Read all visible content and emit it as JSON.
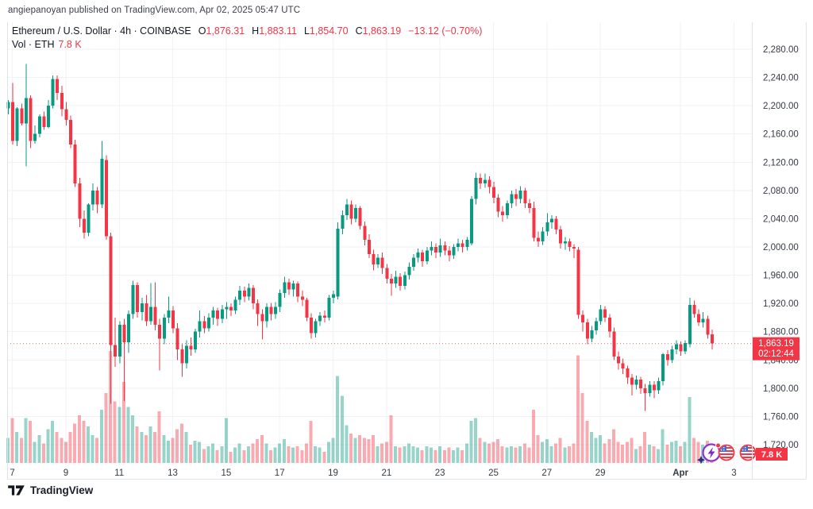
{
  "attribution": "angiepanoyan published on TradingView.com, Apr 02, 2025 05:47 UTC",
  "legend": {
    "title": "Ethereum / U.S. Dollar · 4h · COINBASE",
    "ohlc": [
      {
        "label": "O",
        "value": "1,876.31"
      },
      {
        "label": "H",
        "value": "1,883.11"
      },
      {
        "label": "L",
        "value": "1,854.70"
      },
      {
        "label": "C",
        "value": "1,863.19"
      }
    ],
    "change": "−13.12 (−0.70%)",
    "vol_label": "Vol · ETH",
    "vol_value": "7.8 K"
  },
  "footer": {
    "brand": "TradingView"
  },
  "colors": {
    "up": "#089981",
    "down": "#F23645",
    "grid": "#F0F2F6",
    "axis_text": "#363A45",
    "frame": "#E0E3EB",
    "badge": "#F23645",
    "header_text": "#131722"
  },
  "last_price": {
    "value": 1863.19,
    "label": "1,863.19",
    "countdown": "02:12:44"
  },
  "volume_badge": "7.8 K",
  "chart_data": {
    "type": "candlestick",
    "title": "Ethereum / U.S. Dollar",
    "symbol": "ETHUSD",
    "exchange": "COINBASE",
    "interval": "4h",
    "open": 1876.31,
    "high": 1883.11,
    "low": 1854.7,
    "close": 1863.19,
    "change": -13.12,
    "change_pct": -0.7,
    "current_volume_k": 7.8,
    "volume_unit": "K",
    "ylim": [
      1700,
      2300
    ],
    "grid": true,
    "y_axis": {
      "ticks": [
        {
          "value": 2280,
          "label": "2,280.00"
        },
        {
          "value": 2240,
          "label": "2,240.00"
        },
        {
          "value": 2200,
          "label": "2,200.00"
        },
        {
          "value": 2160,
          "label": "2,160.00"
        },
        {
          "value": 2120,
          "label": "2,120.00"
        },
        {
          "value": 2080,
          "label": "2,080.00"
        },
        {
          "value": 2040,
          "label": "2,040.00"
        },
        {
          "value": 2000,
          "label": "2,000.00"
        },
        {
          "value": 1960,
          "label": "1,960.00"
        },
        {
          "value": 1920,
          "label": "1,920.00"
        },
        {
          "value": 1880,
          "label": "1,880.00"
        },
        {
          "value": 1840,
          "label": "1,840.00"
        },
        {
          "value": 1800,
          "label": "1,800.00"
        },
        {
          "value": 1760,
          "label": "1,760.00"
        },
        {
          "value": 1720,
          "label": "1,720.00"
        }
      ]
    },
    "x_axis": {
      "ticks": [
        {
          "label": "7",
          "index": 1,
          "bold": false
        },
        {
          "label": "9",
          "index": 13,
          "bold": false
        },
        {
          "label": "11",
          "index": 25,
          "bold": false
        },
        {
          "label": "13",
          "index": 37,
          "bold": false
        },
        {
          "label": "15",
          "index": 49,
          "bold": false
        },
        {
          "label": "17",
          "index": 61,
          "bold": false
        },
        {
          "label": "19",
          "index": 73,
          "bold": false
        },
        {
          "label": "21",
          "index": 85,
          "bold": false
        },
        {
          "label": "23",
          "index": 97,
          "bold": false
        },
        {
          "label": "25",
          "index": 109,
          "bold": false
        },
        {
          "label": "27",
          "index": 121,
          "bold": false
        },
        {
          "label": "29",
          "index": 133,
          "bold": false
        },
        {
          "label": "Apr",
          "index": 151,
          "bold": true
        },
        {
          "label": "3",
          "index": 163,
          "bold": false
        }
      ]
    },
    "candles": [
      [
        2196,
        2208,
        2188,
        2205,
        18
      ],
      [
        2205,
        2232,
        2145,
        2150,
        32
      ],
      [
        2150,
        2198,
        2143,
        2196,
        22
      ],
      [
        2196,
        2203,
        2172,
        2175,
        18
      ],
      [
        2175,
        2259,
        2114,
        2211,
        32
      ],
      [
        2211,
        2215,
        2140,
        2150,
        30
      ],
      [
        2150,
        2172,
        2146,
        2160,
        15
      ],
      [
        2160,
        2188,
        2155,
        2185,
        20
      ],
      [
        2185,
        2192,
        2166,
        2170,
        14
      ],
      [
        2170,
        2208,
        2168,
        2200,
        24
      ],
      [
        2200,
        2243,
        2196,
        2238,
        30
      ],
      [
        2238,
        2243,
        2208,
        2218,
        22
      ],
      [
        2218,
        2228,
        2185,
        2195,
        18
      ],
      [
        2195,
        2205,
        2172,
        2180,
        15
      ],
      [
        2180,
        2186,
        2140,
        2145,
        22
      ],
      [
        2145,
        2152,
        2085,
        2090,
        28
      ],
      [
        2090,
        2098,
        2028,
        2040,
        34
      ],
      [
        2040,
        2052,
        2012,
        2020,
        30
      ],
      [
        2020,
        2062,
        2015,
        2060,
        26
      ],
      [
        2060,
        2090,
        2052,
        2080,
        20
      ],
      [
        2080,
        2085,
        2048,
        2060,
        18
      ],
      [
        2060,
        2150,
        2055,
        2125,
        38
      ],
      [
        2123,
        2130,
        2010,
        2015,
        50
      ],
      [
        2015,
        2020,
        1778,
        1861,
        80
      ],
      [
        1861,
        1900,
        1830,
        1845,
        44
      ],
      [
        1845,
        1895,
        1835,
        1890,
        40
      ],
      [
        1890,
        1898,
        1782,
        1865,
        58
      ],
      [
        1865,
        1910,
        1850,
        1905,
        40
      ],
      [
        1905,
        1952,
        1898,
        1946,
        34
      ],
      [
        1946,
        1950,
        1900,
        1908,
        26
      ],
      [
        1908,
        1928,
        1896,
        1920,
        22
      ],
      [
        1920,
        1932,
        1888,
        1895,
        20
      ],
      [
        1895,
        1949,
        1890,
        1915,
        26
      ],
      [
        1915,
        1950,
        1882,
        1890,
        22
      ],
      [
        1890,
        1898,
        1825,
        1870,
        37
      ],
      [
        1870,
        1905,
        1862,
        1900,
        20
      ],
      [
        1900,
        1930,
        1892,
        1910,
        16
      ],
      [
        1910,
        1916,
        1878,
        1885,
        18
      ],
      [
        1885,
        1892,
        1840,
        1855,
        24
      ],
      [
        1855,
        1862,
        1816,
        1835,
        28
      ],
      [
        1835,
        1868,
        1828,
        1860,
        22
      ],
      [
        1860,
        1872,
        1846,
        1855,
        13
      ],
      [
        1855,
        1884,
        1850,
        1880,
        16
      ],
      [
        1880,
        1910,
        1872,
        1895,
        15
      ],
      [
        1895,
        1902,
        1878,
        1885,
        10
      ],
      [
        1885,
        1906,
        1880,
        1900,
        12
      ],
      [
        1900,
        1915,
        1890,
        1910,
        14
      ],
      [
        1910,
        1914,
        1888,
        1898,
        9
      ],
      [
        1898,
        1918,
        1892,
        1912,
        12
      ],
      [
        1912,
        1922,
        1898,
        1915,
        32
      ],
      [
        1915,
        1920,
        1902,
        1910,
        8
      ],
      [
        1910,
        1930,
        1905,
        1925,
        11
      ],
      [
        1925,
        1945,
        1918,
        1938,
        14
      ],
      [
        1938,
        1944,
        1922,
        1930,
        9
      ],
      [
        1930,
        1948,
        1924,
        1942,
        12
      ],
      [
        1942,
        1946,
        1912,
        1920,
        14
      ],
      [
        1920,
        1926,
        1888,
        1905,
        17
      ],
      [
        1905,
        1912,
        1869,
        1895,
        20
      ],
      [
        1895,
        1920,
        1886,
        1915,
        14
      ],
      [
        1915,
        1921,
        1896,
        1905,
        9
      ],
      [
        1905,
        1922,
        1898,
        1915,
        11
      ],
      [
        1915,
        1940,
        1908,
        1935,
        14
      ],
      [
        1935,
        1958,
        1928,
        1950,
        17
      ],
      [
        1950,
        1955,
        1932,
        1940,
        12
      ],
      [
        1940,
        1952,
        1930,
        1948,
        11
      ],
      [
        1948,
        1951,
        1922,
        1930,
        12
      ],
      [
        1930,
        1938,
        1916,
        1925,
        9
      ],
      [
        1925,
        1928,
        1895,
        1900,
        14
      ],
      [
        1900,
        1906,
        1870,
        1878,
        30
      ],
      [
        1878,
        1898,
        1872,
        1895,
        12
      ],
      [
        1895,
        1908,
        1888,
        1903,
        11
      ],
      [
        1903,
        1910,
        1893,
        1900,
        8
      ],
      [
        1900,
        1932,
        1896,
        1928,
        15
      ],
      [
        1928,
        1938,
        1920,
        1933,
        18
      ],
      [
        1930,
        2035,
        1926,
        2026,
        62
      ],
      [
        2026,
        2052,
        2018,
        2045,
        48
      ],
      [
        2045,
        2068,
        2038,
        2060,
        27
      ],
      [
        2060,
        2066,
        2032,
        2040,
        21
      ],
      [
        2040,
        2060,
        2035,
        2055,
        18
      ],
      [
        2055,
        2058,
        2025,
        2030,
        20
      ],
      [
        2030,
        2036,
        2002,
        2010,
        18
      ],
      [
        2010,
        2018,
        1984,
        1990,
        17
      ],
      [
        1990,
        1996,
        1967,
        1975,
        20
      ],
      [
        1975,
        1990,
        1970,
        1985,
        12
      ],
      [
        1985,
        1992,
        1962,
        1970,
        14
      ],
      [
        1970,
        1976,
        1948,
        1955,
        15
      ],
      [
        1955,
        1962,
        1931,
        1948,
        34
      ],
      [
        1948,
        1966,
        1942,
        1958,
        12
      ],
      [
        1958,
        1963,
        1938,
        1945,
        11
      ],
      [
        1945,
        1965,
        1940,
        1960,
        12
      ],
      [
        1960,
        1978,
        1954,
        1972,
        14
      ],
      [
        1972,
        1990,
        1966,
        1985,
        12
      ],
      [
        1985,
        1998,
        1978,
        1992,
        11
      ],
      [
        1992,
        1996,
        1972,
        1980,
        9
      ],
      [
        1980,
        2000,
        1975,
        1995,
        12
      ],
      [
        1995,
        2008,
        1988,
        2000,
        11
      ],
      [
        2000,
        2005,
        1984,
        1992,
        9
      ],
      [
        1992,
        2012,
        1986,
        2002,
        12
      ],
      [
        2002,
        2008,
        1988,
        1995,
        9
      ],
      [
        1995,
        2001,
        1980,
        1988,
        11
      ],
      [
        1988,
        2004,
        1983,
        2000,
        9
      ],
      [
        2000,
        2012,
        1994,
        2005,
        11
      ],
      [
        2005,
        2010,
        1992,
        2000,
        9
      ],
      [
        2000,
        2014,
        1995,
        2010,
        14
      ],
      [
        2005,
        2072,
        2002,
        2068,
        30
      ],
      [
        2068,
        2105,
        2060,
        2098,
        32
      ],
      [
        2098,
        2104,
        2082,
        2090,
        18
      ],
      [
        2090,
        2104,
        2084,
        2095,
        15
      ],
      [
        2095,
        2100,
        2076,
        2085,
        14
      ],
      [
        2085,
        2092,
        2062,
        2070,
        15
      ],
      [
        2070,
        2075,
        2042,
        2050,
        17
      ],
      [
        2050,
        2058,
        2036,
        2045,
        12
      ],
      [
        2045,
        2066,
        2040,
        2062,
        11
      ],
      [
        2062,
        2080,
        2055,
        2075,
        12
      ],
      [
        2075,
        2082,
        2058,
        2068,
        11
      ],
      [
        2068,
        2086,
        2062,
        2080,
        12
      ],
      [
        2080,
        2084,
        2055,
        2062,
        14
      ],
      [
        2062,
        2068,
        2048,
        2055,
        11
      ],
      [
        2055,
        2064,
        2008,
        2013,
        38
      ],
      [
        2013,
        2022,
        2000,
        2008,
        20
      ],
      [
        2008,
        2028,
        2003,
        2022,
        15
      ],
      [
        2022,
        2048,
        2016,
        2035,
        17
      ],
      [
        2035,
        2045,
        2026,
        2040,
        12
      ],
      [
        2040,
        2044,
        2018,
        2025,
        14
      ],
      [
        2025,
        2030,
        1998,
        2005,
        18
      ],
      [
        2005,
        2014,
        1996,
        2008,
        11
      ],
      [
        2008,
        2012,
        1994,
        2000,
        12
      ],
      [
        2000,
        2004,
        1984,
        1998,
        14
      ],
      [
        1996,
        2000,
        1898,
        1904,
        77
      ],
      [
        1904,
        1910,
        1880,
        1893,
        50
      ],
      [
        1893,
        1898,
        1862,
        1870,
        30
      ],
      [
        1870,
        1888,
        1865,
        1882,
        22
      ],
      [
        1882,
        1900,
        1876,
        1895,
        18
      ],
      [
        1895,
        1918,
        1890,
        1912,
        20
      ],
      [
        1912,
        1916,
        1894,
        1900,
        14
      ],
      [
        1900,
        1905,
        1872,
        1880,
        17
      ],
      [
        1880,
        1886,
        1840,
        1845,
        24
      ],
      [
        1845,
        1852,
        1826,
        1835,
        15
      ],
      [
        1835,
        1842,
        1820,
        1828,
        13
      ],
      [
        1828,
        1832,
        1806,
        1815,
        15
      ],
      [
        1815,
        1820,
        1790,
        1805,
        18
      ],
      [
        1805,
        1818,
        1798,
        1812,
        10
      ],
      [
        1812,
        1816,
        1792,
        1800,
        12
      ],
      [
        1800,
        1806,
        1768,
        1793,
        22
      ],
      [
        1793,
        1810,
        1788,
        1805,
        13
      ],
      [
        1805,
        1810,
        1786,
        1797,
        12
      ],
      [
        1797,
        1815,
        1792,
        1810,
        10
      ],
      [
        1810,
        1850,
        1804,
        1848,
        24
      ],
      [
        1848,
        1854,
        1832,
        1840,
        13
      ],
      [
        1840,
        1860,
        1836,
        1855,
        15
      ],
      [
        1855,
        1868,
        1848,
        1862,
        16
      ],
      [
        1862,
        1866,
        1846,
        1852,
        12
      ],
      [
        1852,
        1868,
        1848,
        1864,
        15
      ],
      [
        1862,
        1928,
        1858,
        1918,
        47
      ],
      [
        1918,
        1924,
        1900,
        1905,
        18
      ],
      [
        1905,
        1912,
        1888,
        1893,
        15
      ],
      [
        1893,
        1908,
        1886,
        1898,
        13
      ],
      [
        1898,
        1903,
        1870,
        1876,
        16
      ],
      [
        1876.31,
        1883.11,
        1854.7,
        1863.19,
        7.8
      ]
    ],
    "markers": [
      {
        "type": "event-lightning-icon",
        "x": 896,
        "y": 570
      },
      {
        "type": "us-flag-icon",
        "x": 915,
        "y": 570
      },
      {
        "type": "us-flag-icon",
        "x": 942,
        "y": 570
      }
    ]
  }
}
